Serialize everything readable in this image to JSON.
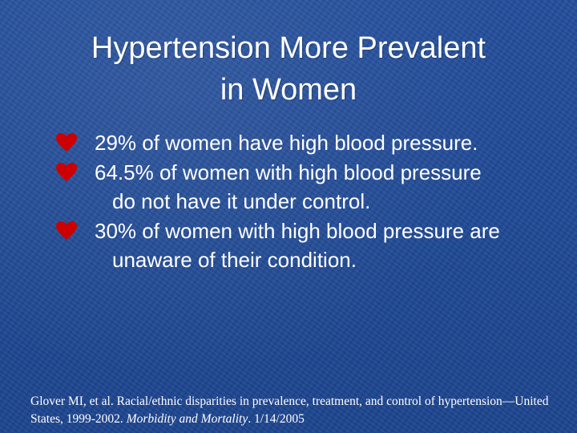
{
  "slide": {
    "title_line1": "Hypertension More Prevalent",
    "title_line2": "in Women",
    "bullet_icon": "heart-icon",
    "accent_color": "#cc0000",
    "bullets": [
      {
        "text": "29% of women have high blood pressure."
      },
      {
        "text": "64.5% of women with high blood pressure do not have it under control."
      },
      {
        "text": "30% of women with high blood pressure are unaware of their condition."
      }
    ],
    "citation": {
      "part1": "Glover MI, et al. Racial/ethnic disparities in prevalence, treatment, and control of hypertension—United States, 1999-2002. ",
      "journal": "Morbidity and Mortality",
      "part2": ". 1/14/2005"
    }
  }
}
